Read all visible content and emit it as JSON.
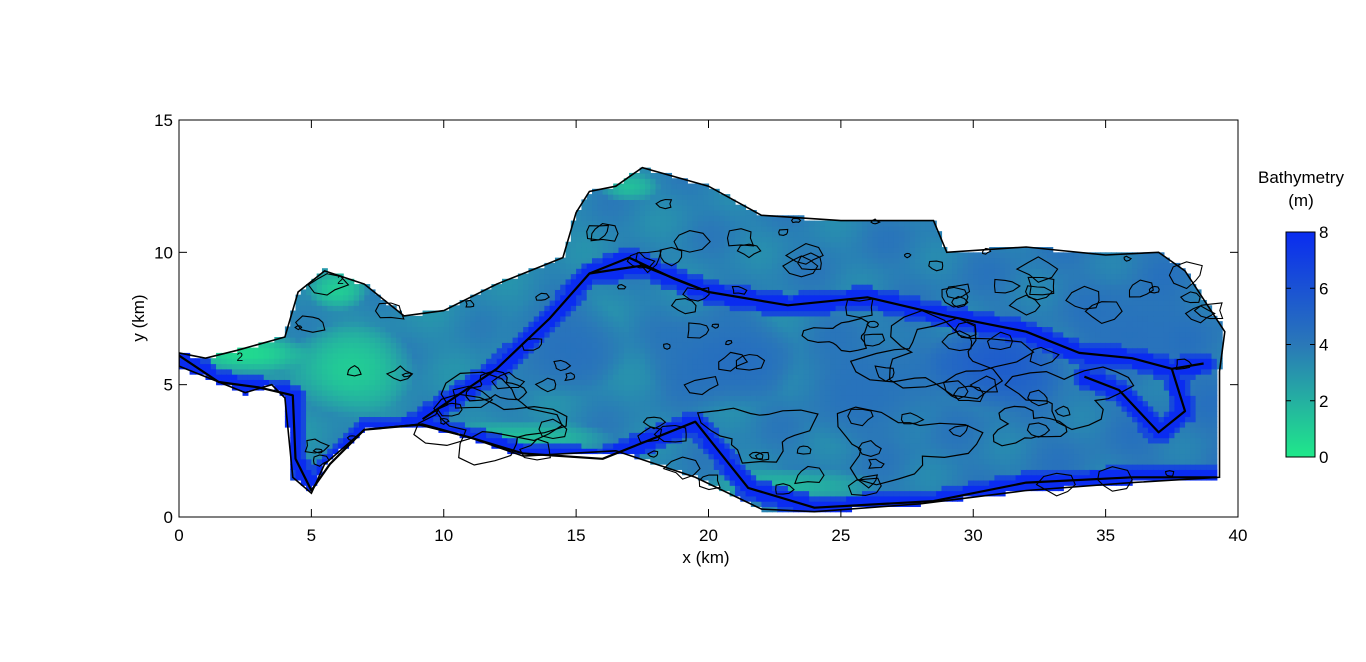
{
  "chart_data": {
    "type": "heatmap",
    "xlabel": "x (km)",
    "ylabel": "y (km)",
    "xlim": [
      0,
      40
    ],
    "ylim": [
      0,
      15
    ],
    "x_ticks": [
      0,
      5,
      10,
      15,
      20,
      25,
      30,
      35,
      40
    ],
    "y_ticks": [
      0,
      5,
      10,
      15
    ],
    "grid": false,
    "colorbar": {
      "title_lines": [
        "Bathymetry",
        "(m)"
      ],
      "range": [
        0,
        8
      ],
      "ticks": [
        0,
        2,
        4,
        6,
        8
      ],
      "color_low": "#1fe88a",
      "color_mid": "#2a78b8",
      "color_high": "#0a2cf0"
    },
    "contour_labels": [
      "2",
      "2"
    ],
    "region_outline": [
      [
        0,
        6.2
      ],
      [
        1,
        6.0
      ],
      [
        2.2,
        6.3
      ],
      [
        4,
        6.8
      ],
      [
        4.5,
        8.5
      ],
      [
        5.5,
        9.3
      ],
      [
        7,
        8.8
      ],
      [
        8.5,
        7.6
      ],
      [
        10,
        7.8
      ],
      [
        12,
        8.8
      ],
      [
        14.5,
        9.8
      ],
      [
        15,
        11.5
      ],
      [
        15.5,
        12.3
      ],
      [
        16.5,
        12.5
      ],
      [
        17.5,
        13.2
      ],
      [
        20,
        12.5
      ],
      [
        22,
        11.4
      ],
      [
        25,
        11.2
      ],
      [
        28.5,
        11.2
      ],
      [
        29,
        10.0
      ],
      [
        32,
        10.2
      ],
      [
        35,
        9.9
      ],
      [
        37,
        10.0
      ],
      [
        38,
        9.3
      ],
      [
        39.5,
        7.0
      ],
      [
        39.3,
        5.5
      ],
      [
        39.3,
        1.5
      ],
      [
        36,
        1.3
      ],
      [
        32,
        1.0
      ],
      [
        28,
        0.5
      ],
      [
        24,
        0.2
      ],
      [
        22,
        0.3
      ],
      [
        19.5,
        1.5
      ],
      [
        16.5,
        2.5
      ],
      [
        13,
        2.3
      ],
      [
        11,
        3.0
      ],
      [
        9,
        3.5
      ],
      [
        7,
        3.3
      ],
      [
        5.5,
        2.0
      ],
      [
        5.0,
        0.9
      ],
      [
        4.3,
        1.5
      ],
      [
        4.0,
        4.5
      ],
      [
        3.5,
        5.0
      ],
      [
        2.5,
        4.7
      ],
      [
        0,
        5.7
      ]
    ],
    "deep_channel_paths": [
      [
        [
          0,
          6.1
        ],
        [
          1.5,
          5.1
        ],
        [
          3,
          4.9
        ],
        [
          4.3,
          4.6
        ],
        [
          4.4,
          2.2
        ],
        [
          5.0,
          1.0
        ],
        [
          5.7,
          2.0
        ],
        [
          7,
          3.3
        ],
        [
          9.2,
          3.5
        ],
        [
          11,
          3.0
        ],
        [
          13,
          2.4
        ],
        [
          16,
          2.2
        ],
        [
          19.5,
          3.6
        ],
        [
          21.5,
          1.1
        ],
        [
          24,
          0.35
        ],
        [
          28.5,
          0.6
        ],
        [
          32,
          1.3
        ],
        [
          36,
          1.5
        ],
        [
          39.2,
          1.5
        ]
      ],
      [
        [
          9.2,
          3.7
        ],
        [
          12,
          5.6
        ],
        [
          14,
          7.5
        ],
        [
          15.5,
          9.2
        ],
        [
          17.5,
          9.5
        ],
        [
          20,
          8.5
        ],
        [
          23,
          8.0
        ],
        [
          26,
          8.3
        ],
        [
          29,
          7.6
        ],
        [
          32,
          7.0
        ],
        [
          34,
          6.2
        ],
        [
          36,
          6.0
        ],
        [
          37.5,
          5.6
        ],
        [
          38.7,
          5.8
        ]
      ],
      [
        [
          34.2,
          5.3
        ],
        [
          35.5,
          4.8
        ],
        [
          37,
          3.2
        ],
        [
          38.0,
          4.0
        ],
        [
          37.5,
          5.6
        ]
      ],
      [
        [
          15.5,
          9.2
        ],
        [
          17,
          9.8
        ],
        [
          18.7,
          9.0
        ],
        [
          20,
          8.5
        ]
      ]
    ],
    "shallow_zones": [
      {
        "center": [
          2.5,
          6.2
        ],
        "radius": [
          2.5,
          0.8
        ],
        "depth": 0.5
      },
      {
        "center": [
          6.5,
          5.6
        ],
        "radius": [
          2.5,
          1.8
        ],
        "depth": 1.0
      },
      {
        "center": [
          6.0,
          8.6
        ],
        "radius": [
          1.2,
          0.8
        ],
        "depth": 1.0
      },
      {
        "center": [
          17,
          12.5
        ],
        "radius": [
          1.2,
          0.6
        ],
        "depth": 1.5
      },
      {
        "center": [
          13,
          3.0
        ],
        "radius": [
          3.5,
          0.7
        ],
        "depth": 1.5
      },
      {
        "center": [
          23,
          1.2
        ],
        "radius": [
          3.5,
          0.7
        ],
        "depth": 1.8
      },
      {
        "center": [
          36.5,
          1.6
        ],
        "radius": [
          1.5,
          0.3
        ],
        "depth": 1.5
      }
    ],
    "deep_zones": [
      {
        "center": [
          31.0,
          5.8
        ],
        "radius": [
          2.8,
          1.8
        ],
        "depth": 5.6
      },
      {
        "center": [
          20.5,
          6.0
        ],
        "radius": [
          3.0,
          2.0
        ],
        "depth": 4.6
      },
      {
        "center": [
          14.5,
          6.5
        ],
        "radius": [
          2.5,
          2.0
        ],
        "depth": 4.4
      },
      {
        "center": [
          36,
          7.0
        ],
        "radius": [
          2.5,
          2.0
        ],
        "depth": 4.4
      },
      {
        "center": [
          26,
          5.0
        ],
        "radius": [
          3.0,
          2.5
        ],
        "depth": 4.3
      }
    ]
  }
}
